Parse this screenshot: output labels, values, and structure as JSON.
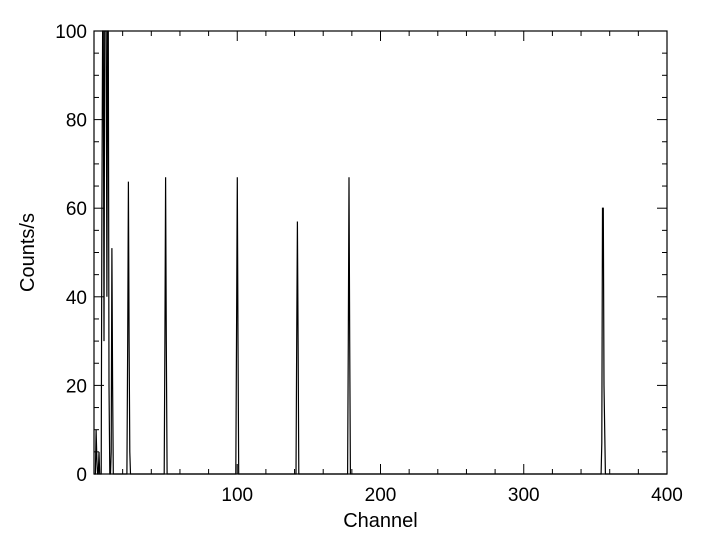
{
  "chart_data": {
    "type": "line",
    "title": "",
    "xlabel": "Channel",
    "ylabel": "Counts/s",
    "xlim": [
      0,
      400
    ],
    "ylim": [
      0,
      100
    ],
    "xticks": [
      100,
      200,
      300,
      400
    ],
    "yticks": [
      0,
      20,
      40,
      60,
      80,
      100
    ],
    "grid": false,
    "legend": "none",
    "line_color": "#000000",
    "series": [
      {
        "x": [
          0,
          1,
          1.5,
          2,
          2.5,
          3,
          3.5,
          4,
          5,
          5.5,
          6,
          6.5,
          7,
          7.5,
          8,
          8.5,
          9,
          9.5,
          10,
          10.5,
          11,
          11.5,
          12,
          12.5,
          13,
          13.5,
          14,
          14.5,
          15,
          16,
          23,
          23.5,
          24,
          24.5,
          25,
          25.5,
          26,
          27,
          48,
          49,
          49.5,
          50,
          50.5,
          51,
          52,
          98,
          99,
          99.5,
          100,
          100.5,
          101,
          102,
          140,
          141,
          141.5,
          142,
          142.5,
          143,
          144,
          176,
          177,
          177.5,
          178,
          178.5,
          179,
          180,
          353,
          354,
          354.5,
          355,
          355.5,
          356,
          357,
          400
        ],
        "y": [
          0,
          0,
          10,
          3,
          0,
          0,
          5,
          0,
          0,
          60,
          100,
          100,
          30,
          100,
          100,
          100,
          40,
          100,
          100,
          20,
          0,
          0,
          5,
          51,
          20,
          0,
          0,
          0,
          0,
          0,
          0,
          30,
          66,
          30,
          5,
          0,
          0,
          0,
          0,
          0,
          30,
          67,
          30,
          0,
          0,
          0,
          0,
          30,
          67,
          30,
          0,
          0,
          0,
          0,
          30,
          57,
          30,
          0,
          0,
          0,
          0,
          30,
          67,
          30,
          0,
          0,
          0,
          0,
          7,
          60,
          60,
          20,
          0,
          0
        ]
      }
    ]
  }
}
